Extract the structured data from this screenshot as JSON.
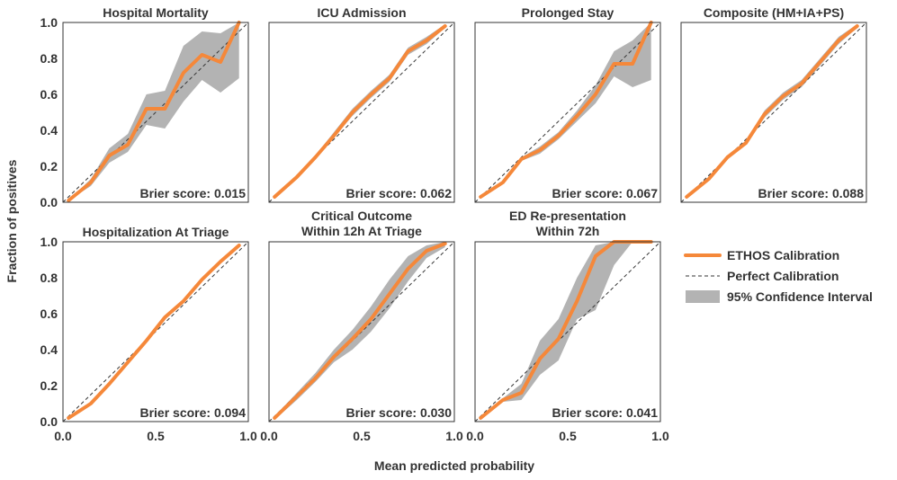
{
  "figure": {
    "xlabel": "Mean predicted probability",
    "ylabel": "Fraction of positives",
    "legend": {
      "placement": "right",
      "items": [
        {
          "label": "ETHOS Calibration",
          "kind": "line",
          "color": "#f5883a"
        },
        {
          "label": "Perfect Calibration",
          "kind": "dashed",
          "color": "#333333"
        },
        {
          "label": "95% Confidence Interval",
          "kind": "patch",
          "color": "#b3b3b3"
        }
      ]
    }
  },
  "chart_data": [
    {
      "type": "line",
      "title": [
        "Hospital Mortality"
      ],
      "brier": "Brier score: 0.015",
      "xlim": [
        0,
        1
      ],
      "ylim": [
        0,
        1
      ],
      "x": [
        0.03,
        0.15,
        0.25,
        0.35,
        0.45,
        0.55,
        0.65,
        0.75,
        0.85,
        0.95
      ],
      "y": [
        0.01,
        0.11,
        0.26,
        0.32,
        0.52,
        0.52,
        0.72,
        0.82,
        0.78,
        1.0
      ],
      "ci_low": [
        0.01,
        0.09,
        0.22,
        0.28,
        0.43,
        0.41,
        0.56,
        0.68,
        0.61,
        0.69
      ],
      "ci_high": [
        0.01,
        0.13,
        0.3,
        0.38,
        0.6,
        0.62,
        0.87,
        0.95,
        0.94,
        1.0
      ]
    },
    {
      "type": "line",
      "title": [
        "ICU Admission"
      ],
      "brier": "Brier score: 0.062",
      "xlim": [
        0,
        1
      ],
      "ylim": [
        0,
        1
      ],
      "x": [
        0.03,
        0.15,
        0.25,
        0.35,
        0.45,
        0.55,
        0.65,
        0.75,
        0.85,
        0.95
      ],
      "y": [
        0.03,
        0.14,
        0.25,
        0.37,
        0.5,
        0.6,
        0.69,
        0.84,
        0.9,
        0.98
      ],
      "ci_low": [
        0.02,
        0.13,
        0.24,
        0.36,
        0.48,
        0.58,
        0.67,
        0.82,
        0.88,
        0.97
      ],
      "ci_high": [
        0.04,
        0.15,
        0.26,
        0.39,
        0.52,
        0.62,
        0.71,
        0.86,
        0.92,
        0.99
      ]
    },
    {
      "type": "line",
      "title": [
        "Prolonged Stay"
      ],
      "brier": "Brier score: 0.067",
      "xlim": [
        0,
        1
      ],
      "ylim": [
        0,
        1
      ],
      "x": [
        0.03,
        0.15,
        0.25,
        0.35,
        0.45,
        0.55,
        0.65,
        0.75,
        0.85,
        0.95
      ],
      "y": [
        0.03,
        0.11,
        0.24,
        0.29,
        0.37,
        0.48,
        0.6,
        0.77,
        0.77,
        1.0
      ],
      "ci_low": [
        0.02,
        0.1,
        0.23,
        0.27,
        0.35,
        0.45,
        0.55,
        0.7,
        0.64,
        0.68
      ],
      "ci_high": [
        0.04,
        0.12,
        0.25,
        0.31,
        0.39,
        0.51,
        0.65,
        0.84,
        0.9,
        1.0
      ]
    },
    {
      "type": "line",
      "title": [
        "Composite (HM+IA+PS)"
      ],
      "brier": "Brier score: 0.088",
      "xlim": [
        0,
        1
      ],
      "ylim": [
        0,
        1
      ],
      "x": [
        0.03,
        0.15,
        0.25,
        0.35,
        0.45,
        0.55,
        0.65,
        0.75,
        0.85,
        0.95
      ],
      "y": [
        0.03,
        0.13,
        0.25,
        0.33,
        0.49,
        0.59,
        0.66,
        0.78,
        0.9,
        0.98
      ],
      "ci_low": [
        0.02,
        0.12,
        0.24,
        0.32,
        0.47,
        0.57,
        0.64,
        0.76,
        0.88,
        0.97
      ],
      "ci_high": [
        0.04,
        0.14,
        0.26,
        0.34,
        0.51,
        0.61,
        0.68,
        0.8,
        0.92,
        0.99
      ]
    },
    {
      "type": "line",
      "title": [
        "Hospitalization At Triage"
      ],
      "brier": "Brier score: 0.094",
      "xlim": [
        0,
        1
      ],
      "ylim": [
        0,
        1
      ],
      "x": [
        0.03,
        0.15,
        0.25,
        0.35,
        0.45,
        0.55,
        0.65,
        0.75,
        0.85,
        0.95
      ],
      "y": [
        0.02,
        0.1,
        0.21,
        0.33,
        0.45,
        0.58,
        0.67,
        0.79,
        0.89,
        0.98
      ],
      "ci_low": [
        0.01,
        0.09,
        0.2,
        0.32,
        0.44,
        0.57,
        0.66,
        0.78,
        0.88,
        0.97
      ],
      "ci_high": [
        0.03,
        0.11,
        0.22,
        0.34,
        0.46,
        0.59,
        0.68,
        0.8,
        0.9,
        0.99
      ]
    },
    {
      "type": "line",
      "title": [
        "Critical Outcome",
        "Within 12h At Triage"
      ],
      "brier": "Brier score: 0.030",
      "xlim": [
        0,
        1
      ],
      "ylim": [
        0,
        1
      ],
      "x": [
        0.03,
        0.15,
        0.25,
        0.35,
        0.45,
        0.55,
        0.65,
        0.75,
        0.85,
        0.95
      ],
      "y": [
        0.02,
        0.14,
        0.24,
        0.36,
        0.46,
        0.57,
        0.71,
        0.85,
        0.95,
        0.99
      ],
      "ci_low": [
        0.01,
        0.12,
        0.22,
        0.33,
        0.4,
        0.5,
        0.63,
        0.78,
        0.91,
        0.97
      ],
      "ci_high": [
        0.03,
        0.16,
        0.27,
        0.4,
        0.51,
        0.64,
        0.79,
        0.92,
        0.98,
        1.0
      ]
    },
    {
      "type": "line",
      "title": [
        "ED Re-presentation",
        "Within 72h"
      ],
      "brier": "Brier score: 0.041",
      "xlim": [
        0,
        1
      ],
      "ylim": [
        0,
        1
      ],
      "x": [
        0.03,
        0.15,
        0.25,
        0.35,
        0.45,
        0.55,
        0.65,
        0.75,
        0.85,
        0.95
      ],
      "y": [
        0.02,
        0.12,
        0.16,
        0.35,
        0.46,
        0.67,
        0.92,
        1.0,
        1.0,
        1.0
      ],
      "ci_low": [
        0.02,
        0.11,
        0.12,
        0.26,
        0.34,
        0.57,
        0.62,
        0.87,
        1.0,
        1.0
      ],
      "ci_high": [
        0.02,
        0.13,
        0.21,
        0.45,
        0.57,
        0.8,
        0.98,
        1.0,
        1.0,
        1.0
      ]
    }
  ]
}
